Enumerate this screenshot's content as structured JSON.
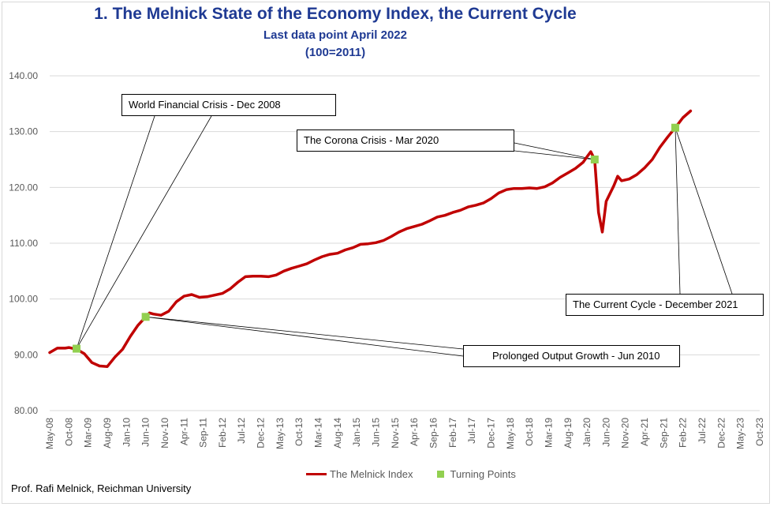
{
  "title": "1.  The Melnick State of the Economy Index, the Current Cycle",
  "subtitle1": "Last data point April 2022",
  "subtitle2": "(100=2011)",
  "credit": "Prof. Rafi Melnick, Reichman University",
  "legend": {
    "index": "The Melnick Index",
    "turning": "Turning Points"
  },
  "callouts": {
    "wfc": "World Financial Crisis - Dec 2008",
    "corona": "The Corona Crisis - Mar 2020",
    "current": "The Current Cycle - December 2021",
    "prolonged": "Prolonged Output Growth - Jun 2010"
  },
  "colors": {
    "line": "#c00000",
    "points": "#92d050",
    "title": "#1f3a93",
    "grid": "#d9d9d9"
  },
  "chart_data": {
    "type": "line",
    "ylim": [
      80,
      140
    ],
    "yticks": [
      "80.00",
      "90.00",
      "100.00",
      "110.00",
      "120.00",
      "130.00",
      "140.00"
    ],
    "x_range": [
      "May-08",
      "Oct-23"
    ],
    "x_ticks": [
      "May-08",
      "Oct-08",
      "Mar-09",
      "Aug-09",
      "Jan-10",
      "Jun-10",
      "Nov-10",
      "Apr-11",
      "Sep-11",
      "Feb-12",
      "Jul-12",
      "Dec-12",
      "May-13",
      "Oct-13",
      "Mar-14",
      "Aug-14",
      "Jan-15",
      "Jun-15",
      "Nov-15",
      "Apr-16",
      "Sep-16",
      "Feb-17",
      "Jul-17",
      "Dec-17",
      "May-18",
      "Oct-18",
      "Mar-19",
      "Aug-19",
      "Jan-20",
      "Jun-20",
      "Nov-20",
      "Apr-21",
      "Sep-21",
      "Feb-22",
      "Jul-22",
      "Dec-22",
      "May-23",
      "Oct-23"
    ],
    "series": [
      {
        "name": "The Melnick Index",
        "points": [
          [
            "May-08",
            90.4
          ],
          [
            "Jul-08",
            91.2
          ],
          [
            "Sep-08",
            91.2
          ],
          [
            "Oct-08",
            91.3
          ],
          [
            "Dec-08",
            91.0
          ],
          [
            "Feb-09",
            90.2
          ],
          [
            "Apr-09",
            88.6
          ],
          [
            "Jun-09",
            88.0
          ],
          [
            "Aug-09",
            87.9
          ],
          [
            "Oct-09",
            89.6
          ],
          [
            "Dec-09",
            91.0
          ],
          [
            "Feb-10",
            93.3
          ],
          [
            "Apr-10",
            95.3
          ],
          [
            "Jun-10",
            96.8
          ],
          [
            "Jul-10",
            97.5
          ],
          [
            "Aug-10",
            97.3
          ],
          [
            "Oct-10",
            97.1
          ],
          [
            "Dec-10",
            97.8
          ],
          [
            "Feb-11",
            99.5
          ],
          [
            "Apr-11",
            100.5
          ],
          [
            "Jun-11",
            100.8
          ],
          [
            "Aug-11",
            100.3
          ],
          [
            "Oct-11",
            100.4
          ],
          [
            "Dec-11",
            100.7
          ],
          [
            "Feb-12",
            101.0
          ],
          [
            "Apr-12",
            101.8
          ],
          [
            "Jun-12",
            103.0
          ],
          [
            "Aug-12",
            104.0
          ],
          [
            "Oct-12",
            104.1
          ],
          [
            "Dec-12",
            104.1
          ],
          [
            "Feb-13",
            104.0
          ],
          [
            "Apr-13",
            104.3
          ],
          [
            "Jun-13",
            105.0
          ],
          [
            "Aug-13",
            105.5
          ],
          [
            "Oct-13",
            105.9
          ],
          [
            "Dec-13",
            106.3
          ],
          [
            "Feb-14",
            107.0
          ],
          [
            "Apr-14",
            107.6
          ],
          [
            "Jun-14",
            108.0
          ],
          [
            "Aug-14",
            108.2
          ],
          [
            "Oct-14",
            108.8
          ],
          [
            "Dec-14",
            109.2
          ],
          [
            "Feb-15",
            109.8
          ],
          [
            "Apr-15",
            109.9
          ],
          [
            "Jun-15",
            110.1
          ],
          [
            "Aug-15",
            110.5
          ],
          [
            "Oct-15",
            111.2
          ],
          [
            "Dec-15",
            112.0
          ],
          [
            "Feb-16",
            112.6
          ],
          [
            "Apr-16",
            113.0
          ],
          [
            "Jun-16",
            113.4
          ],
          [
            "Aug-16",
            114.0
          ],
          [
            "Oct-16",
            114.7
          ],
          [
            "Dec-16",
            115.0
          ],
          [
            "Feb-17",
            115.5
          ],
          [
            "Apr-17",
            115.9
          ],
          [
            "Jun-17",
            116.5
          ],
          [
            "Aug-17",
            116.8
          ],
          [
            "Oct-17",
            117.2
          ],
          [
            "Dec-17",
            118.0
          ],
          [
            "Feb-18",
            119.0
          ],
          [
            "Apr-18",
            119.6
          ],
          [
            "Jun-18",
            119.8
          ],
          [
            "Aug-18",
            119.8
          ],
          [
            "Oct-18",
            119.9
          ],
          [
            "Dec-18",
            119.8
          ],
          [
            "Feb-19",
            120.1
          ],
          [
            "Apr-19",
            120.8
          ],
          [
            "Jun-19",
            121.8
          ],
          [
            "Aug-19",
            122.6
          ],
          [
            "Oct-19",
            123.4
          ],
          [
            "Dec-19",
            124.5
          ],
          [
            "Jan-20",
            125.5
          ],
          [
            "Feb-20",
            126.4
          ],
          [
            "Mar-20",
            125.0
          ],
          [
            "Apr-20",
            115.5
          ],
          [
            "May-20",
            112.0
          ],
          [
            "Jun-20",
            117.5
          ],
          [
            "Aug-20",
            120.3
          ],
          [
            "Sep-20",
            122.0
          ],
          [
            "Oct-20",
            121.2
          ],
          [
            "Dec-20",
            121.5
          ],
          [
            "Feb-21",
            122.3
          ],
          [
            "Apr-21",
            123.5
          ],
          [
            "Jun-21",
            125.0
          ],
          [
            "Aug-21",
            127.2
          ],
          [
            "Oct-21",
            129.0
          ],
          [
            "Dec-21",
            130.7
          ],
          [
            "Feb-22",
            132.5
          ],
          [
            "Apr-22",
            133.7
          ]
        ]
      },
      {
        "name": "Turning Points",
        "points": [
          [
            "Dec-08",
            91.1
          ],
          [
            "Jun-10",
            96.8
          ],
          [
            "Mar-20",
            125.0
          ],
          [
            "Dec-21",
            130.7
          ]
        ]
      }
    ]
  }
}
